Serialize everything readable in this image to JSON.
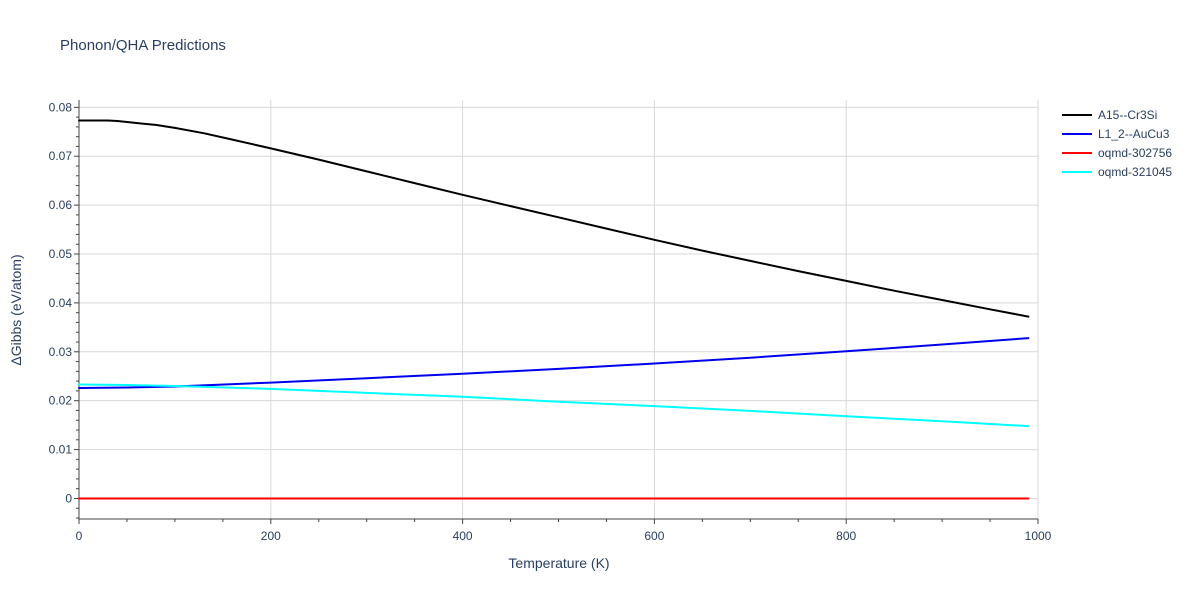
{
  "chart_data": {
    "type": "line",
    "title": "Phonon/QHA Predictions",
    "xlabel": "Temperature (K)",
    "ylabel": "ΔGibbs (eV/atom)",
    "xlim": [
      0,
      1000
    ],
    "ylim": [
      -0.0042,
      0.0815
    ],
    "x_ticks": [
      0,
      200,
      400,
      600,
      800,
      1000
    ],
    "x_tick_labels": [
      "0",
      "200",
      "400",
      "600",
      "800",
      "1000"
    ],
    "y_ticks": [
      0,
      0.01,
      0.02,
      0.03,
      0.04,
      0.05,
      0.06,
      0.07,
      0.08
    ],
    "y_tick_labels": [
      "0",
      "0.01",
      "0.02",
      "0.03",
      "0.04",
      "0.05",
      "0.06",
      "0.07",
      "0.08"
    ],
    "grid": true,
    "legend_position": "top-right",
    "series": [
      {
        "name": "A15--Cr3Si",
        "color": "#000000",
        "x": [
          0,
          10,
          20,
          30,
          40,
          50,
          60,
          70,
          80,
          100,
          130,
          160,
          200,
          250,
          300,
          350,
          400,
          450,
          500,
          550,
          600,
          650,
          700,
          750,
          800,
          850,
          900,
          950,
          990
        ],
        "y": [
          0.0773,
          0.0773,
          0.0773,
          0.0773,
          0.0772,
          0.077,
          0.0768,
          0.0766,
          0.0764,
          0.0758,
          0.0747,
          0.0734,
          0.0716,
          0.0693,
          0.0669,
          0.0645,
          0.0621,
          0.0598,
          0.0575,
          0.0552,
          0.0529,
          0.0507,
          0.0486,
          0.0465,
          0.0445,
          0.0425,
          0.0406,
          0.0387,
          0.0372
        ]
      },
      {
        "name": "L1_2--AuCu3",
        "color": "#0000ee",
        "x": [
          0,
          50,
          100,
          200,
          300,
          400,
          500,
          600,
          700,
          800,
          900,
          990
        ],
        "y": [
          0.0226,
          0.0227,
          0.0229,
          0.0237,
          0.0246,
          0.0255,
          0.0265,
          0.0276,
          0.0288,
          0.0301,
          0.0315,
          0.0328
        ]
      },
      {
        "name": "oqmd-302756",
        "color": "#ff0000",
        "x": [
          0,
          990
        ],
        "y": [
          0,
          0
        ]
      },
      {
        "name": "oqmd-321045",
        "color": "#00ffff",
        "x": [
          0,
          50,
          100,
          200,
          300,
          400,
          500,
          600,
          700,
          800,
          900,
          990
        ],
        "y": [
          0.0233,
          0.0232,
          0.023,
          0.0224,
          0.0216,
          0.0208,
          0.0198,
          0.0189,
          0.0179,
          0.0168,
          0.0158,
          0.0148
        ]
      }
    ]
  }
}
